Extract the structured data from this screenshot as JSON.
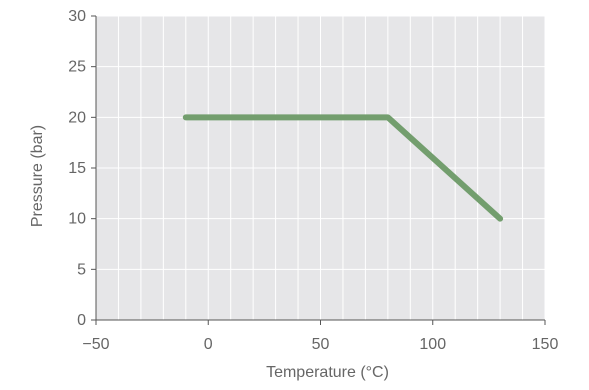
{
  "chart_data": {
    "type": "line",
    "title": "",
    "xlabel": "Temperature (°C)",
    "ylabel": "Pressure (bar)",
    "xlim": [
      -50,
      150
    ],
    "ylim": [
      0,
      30
    ],
    "x_ticks": [
      -50,
      0,
      50,
      100,
      150
    ],
    "x_tick_labels": [
      "−50",
      "0",
      "50",
      "100",
      "150"
    ],
    "y_ticks": [
      0,
      5,
      10,
      15,
      20,
      25,
      30
    ],
    "y_tick_labels": [
      "0",
      "5",
      "10",
      "15",
      "20",
      "25",
      "30"
    ],
    "x_minor_step": 10,
    "y_minor_step": 5,
    "grid": true,
    "legend": "none",
    "series": [
      {
        "x": [
          -10,
          80,
          130
        ],
        "y": [
          20,
          20,
          10
        ]
      }
    ]
  },
  "colors": {
    "background": "#ffffff",
    "plot_area": "#e6e6e8",
    "grid": "#ffffff",
    "axis": "#555555",
    "text": "#666666",
    "line": "#739e6e"
  }
}
